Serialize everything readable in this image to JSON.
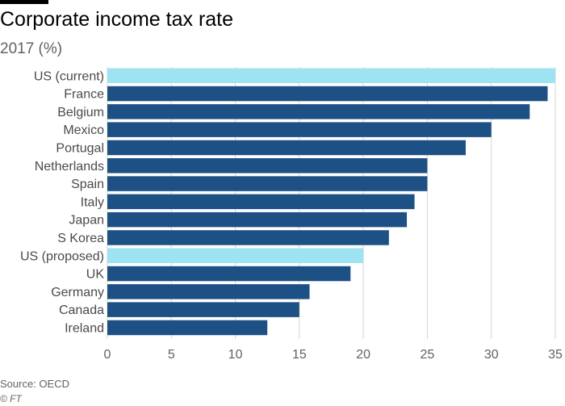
{
  "title": "Corporate income tax rate",
  "subtitle": "2017 (%)",
  "source": "Source: OECD",
  "credit": "© FT",
  "colors": {
    "bar": "#1d5185",
    "highlight": "#9ee3f2",
    "grid": "#d9d4cf",
    "tick_text": "#66605c",
    "label_text": "#4a4a4a"
  },
  "chart_data": {
    "type": "bar",
    "orientation": "horizontal",
    "categories": [
      "US (current)",
      "France",
      "Belgium",
      "Mexico",
      "Portugal",
      "Netherlands",
      "Spain",
      "Italy",
      "Japan",
      "S Korea",
      "US (proposed)",
      "UK",
      "Germany",
      "Canada",
      "Ireland"
    ],
    "values": [
      35,
      34.4,
      33,
      30,
      28,
      25,
      25,
      24,
      23.4,
      22,
      20,
      19,
      15.8,
      15,
      12.5
    ],
    "highlighted": [
      "US (current)",
      "US (proposed)"
    ],
    "xlim": [
      0,
      35
    ],
    "xticks": [
      0,
      5,
      10,
      15,
      20,
      25,
      30,
      35
    ],
    "grid": true,
    "xlabel": "",
    "ylabel": ""
  }
}
